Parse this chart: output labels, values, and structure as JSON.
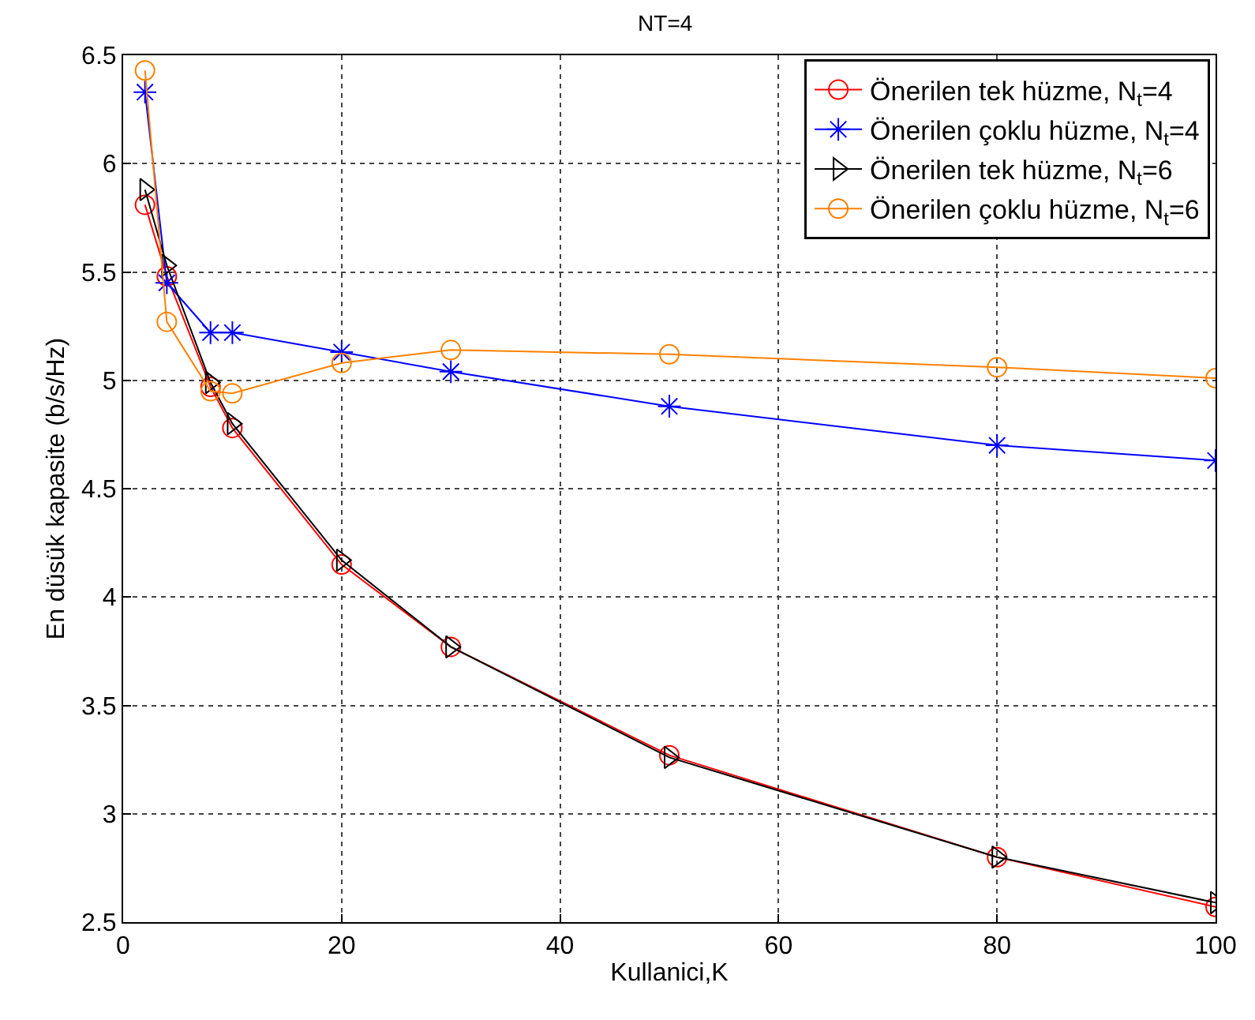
{
  "chart_data": {
    "type": "line",
    "title": "NT=4",
    "xlabel": "Kullanici,K",
    "ylabel": "En düsük kapasite (b/s/Hz)",
    "x": [
      2,
      4,
      8,
      10,
      20,
      30,
      50,
      80,
      100
    ],
    "xlim": [
      0,
      100
    ],
    "xticks": [
      0,
      20,
      40,
      60,
      80,
      100
    ],
    "ylim": [
      2.5,
      6.5
    ],
    "yticks": [
      2.5,
      3,
      3.5,
      4,
      4.5,
      5,
      5.5,
      6,
      6.5
    ],
    "grid": true,
    "legend": "top right",
    "line_style": "solid",
    "series": [
      {
        "name": "Önerilen tek hüzme, N$_{t}$=4",
        "color": "#ff0000",
        "marker": "circle",
        "values": [
          5.81,
          5.48,
          4.97,
          4.78,
          4.15,
          3.77,
          3.27,
          2.8,
          2.57
        ]
      },
      {
        "name": "Önerilen çoklu hüzme, N$_{t}$=4",
        "color": "#0000ff",
        "marker": "cross",
        "values": [
          6.33,
          5.45,
          5.22,
          5.22,
          5.13,
          5.04,
          4.88,
          4.7,
          4.63
        ]
      },
      {
        "name": "Önerilen tek hüzme, N$_{t}$=6",
        "color": "#000000",
        "marker": "triangle",
        "values": [
          5.88,
          5.53,
          4.99,
          4.8,
          4.17,
          3.77,
          3.26,
          2.8,
          2.59
        ]
      },
      {
        "name": "Önerilen çoklu hüzme, N$_{t}$=6",
        "color": "#ff8000",
        "marker": "circle",
        "values": [
          6.43,
          5.27,
          4.95,
          4.94,
          5.08,
          5.14,
          5.12,
          5.06,
          5.01
        ]
      }
    ]
  }
}
